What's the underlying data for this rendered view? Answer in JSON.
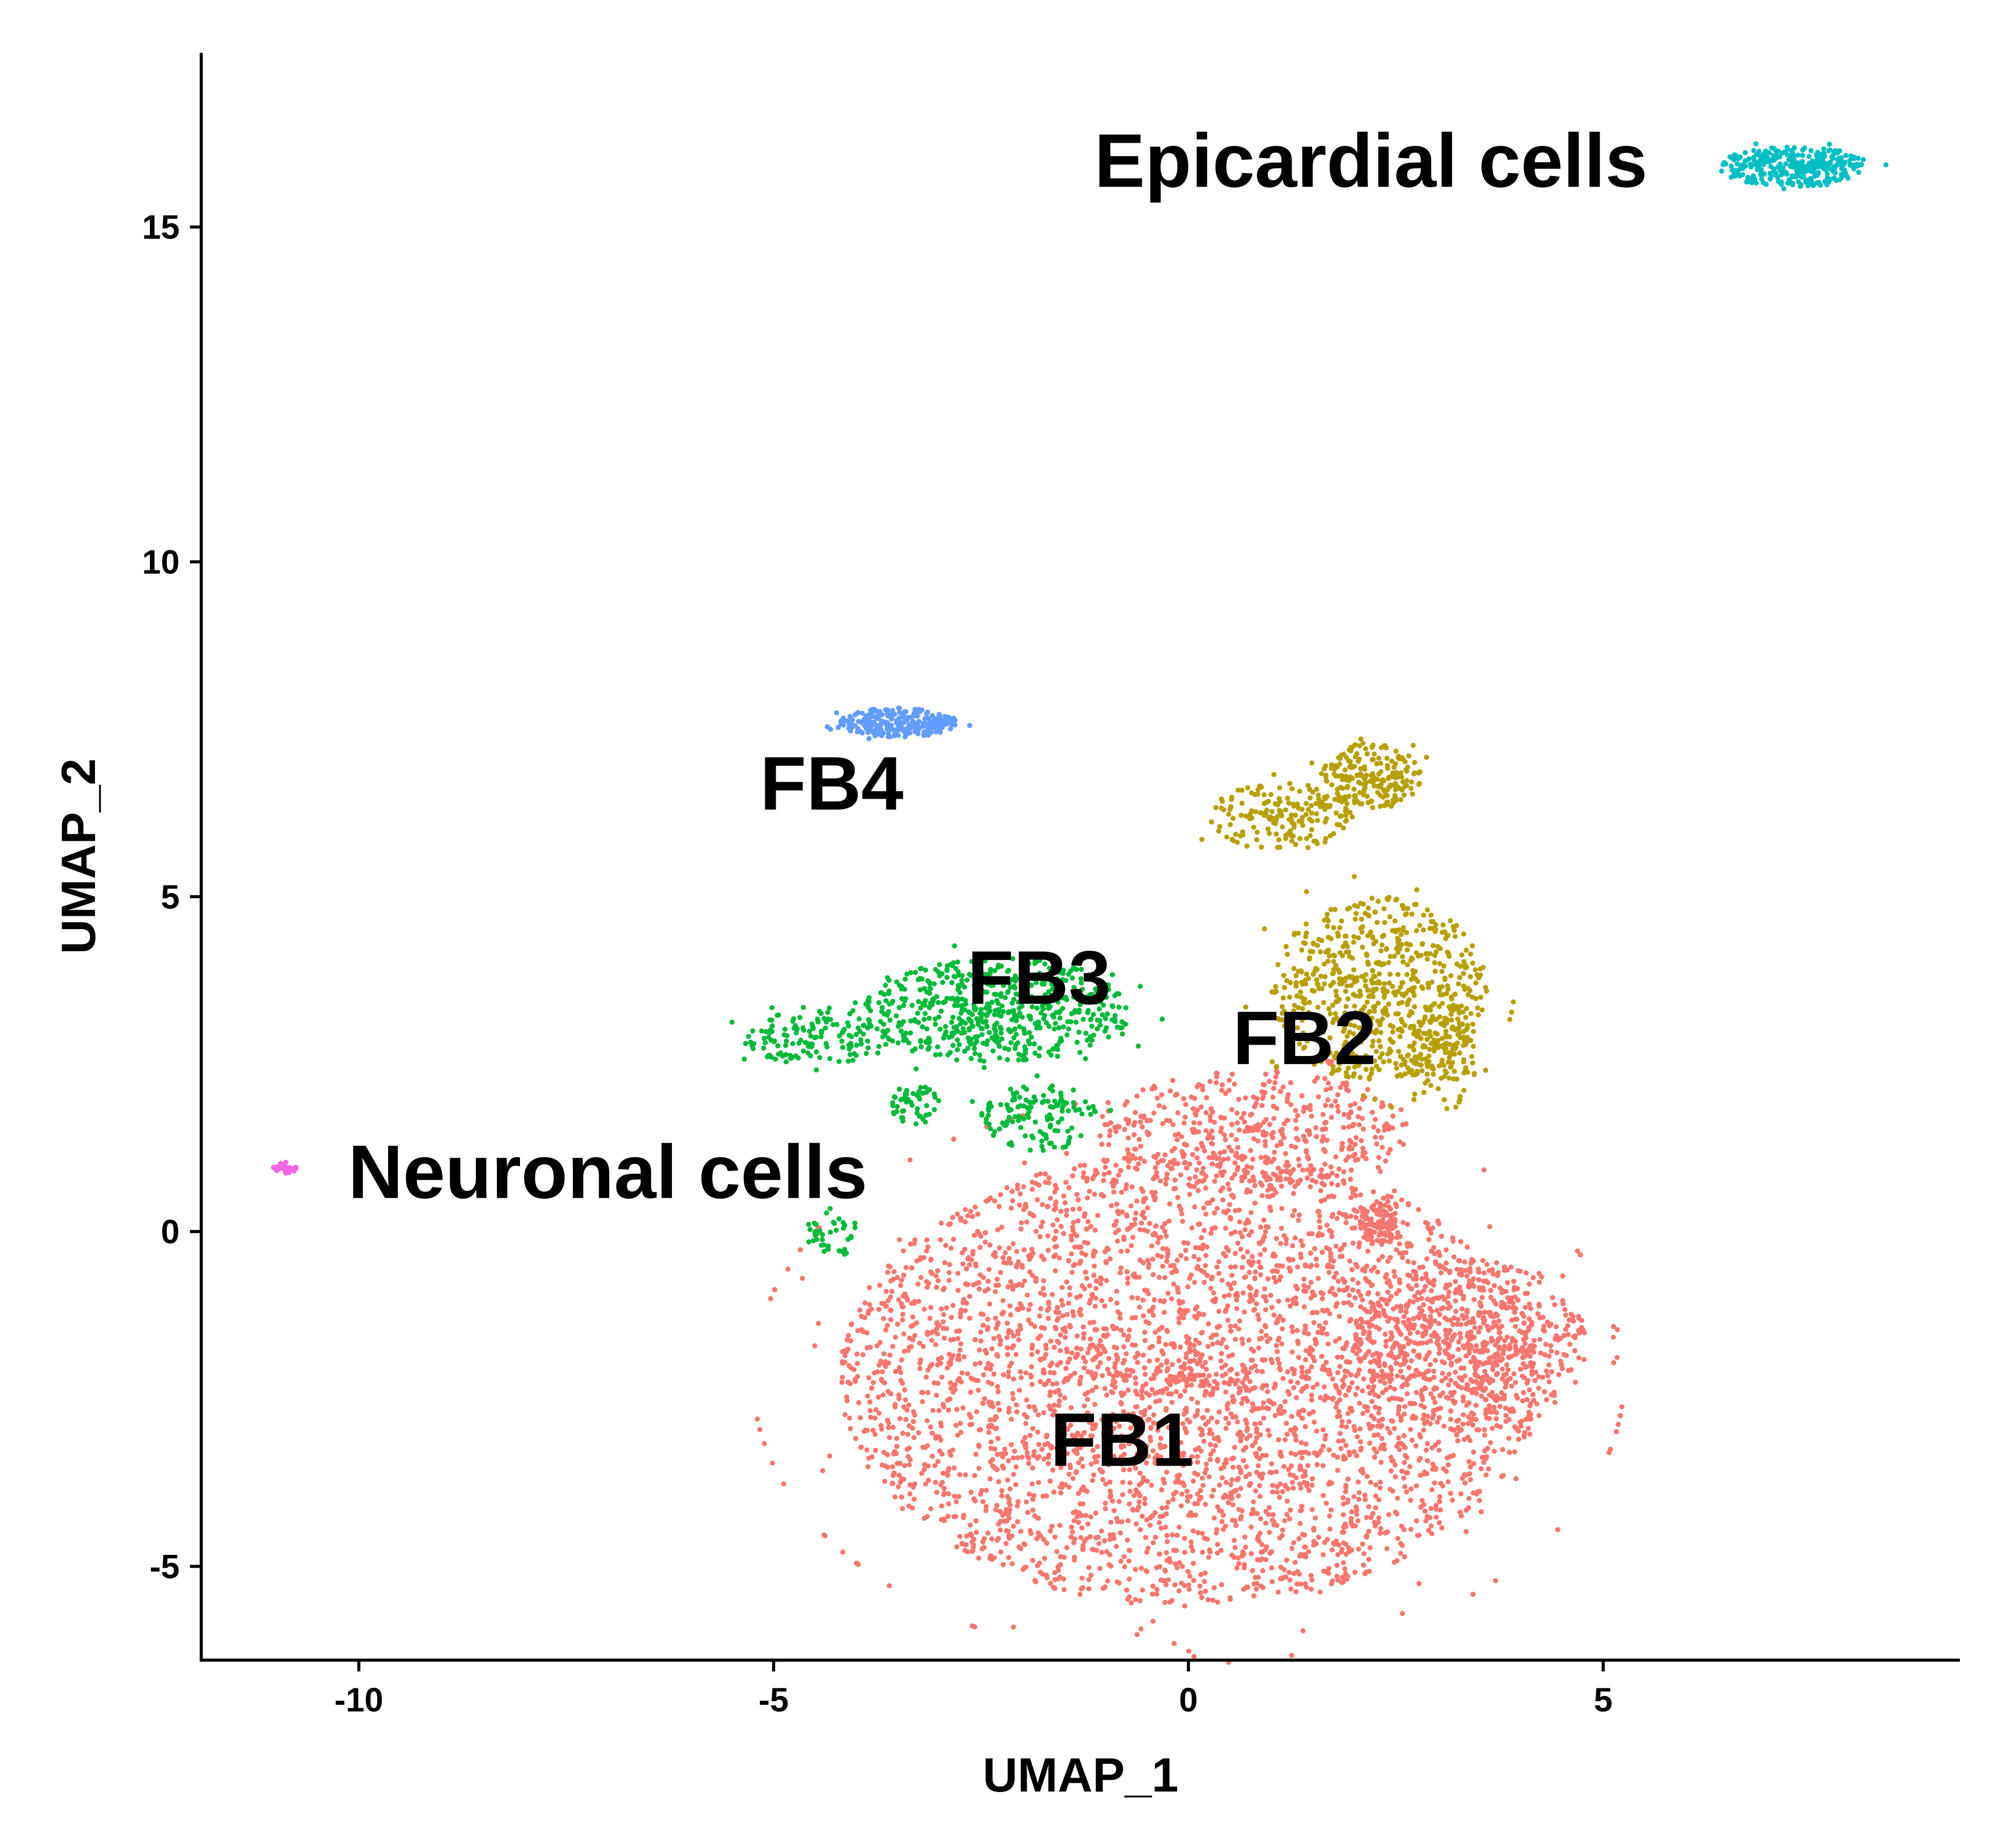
{
  "chart_data": {
    "type": "scatter",
    "title": "",
    "xlabel": "UMAP_1",
    "ylabel": "UMAP_2",
    "xlim": [
      -11.9,
      9.3
    ],
    "ylim": [
      -6.4,
      17.6
    ],
    "xticks": [
      -10,
      -5,
      0,
      5
    ],
    "yticks": [
      -5,
      0,
      5,
      10,
      15
    ],
    "x_tick_labels": [
      "-10",
      "-5",
      "0",
      "5"
    ],
    "y_tick_labels": [
      "-5",
      "0",
      "5",
      "10",
      "15"
    ],
    "grid": false,
    "legend": "none",
    "series": [
      {
        "name": "FB1",
        "color": "#F8766D",
        "label_position": [
          -0.8,
          -3.2
        ],
        "regions": [
          {
            "cx": 0.0,
            "cy": -2.2,
            "rx": 4.2,
            "ry": 3.4,
            "n": 4200
          },
          {
            "cx": 3.4,
            "cy": -1.7,
            "rx": 1.4,
            "ry": 1.3,
            "n": 600
          },
          {
            "cx": 0.8,
            "cy": 1.5,
            "rx": 1.9,
            "ry": 0.9,
            "n": 450
          },
          {
            "cx": 2.3,
            "cy": 0.1,
            "rx": 0.3,
            "ry": 0.3,
            "n": 80
          }
        ]
      },
      {
        "name": "FB2",
        "color": "#B79F00",
        "label_position": [
          1.4,
          2.8
        ],
        "regions": [
          {
            "cx": 2.3,
            "cy": 3.6,
            "rx": 1.3,
            "ry": 1.4,
            "n": 700
          },
          {
            "cx": 2.2,
            "cy": 6.8,
            "rx": 0.6,
            "ry": 0.5,
            "n": 220
          },
          {
            "cx": 1.1,
            "cy": 6.2,
            "rx": 0.9,
            "ry": 0.5,
            "n": 180
          },
          {
            "cx": 3.1,
            "cy": 2.7,
            "rx": 0.4,
            "ry": 0.9,
            "n": 140
          }
        ]
      },
      {
        "name": "FB3",
        "color": "#00BA38",
        "label_position": [
          -1.8,
          3.7
        ],
        "regions": [
          {
            "cx": -2.3,
            "cy": 3.3,
            "rx": 1.6,
            "ry": 0.8,
            "n": 600
          },
          {
            "cx": -4.5,
            "cy": 2.9,
            "rx": 0.9,
            "ry": 0.4,
            "n": 150
          },
          {
            "cx": -1.8,
            "cy": 1.7,
            "rx": 0.7,
            "ry": 0.5,
            "n": 130
          },
          {
            "cx": -3.3,
            "cy": 1.9,
            "rx": 0.3,
            "ry": 0.3,
            "n": 50
          },
          {
            "cx": -4.3,
            "cy": 0.0,
            "rx": 0.3,
            "ry": 0.4,
            "n": 40
          }
        ]
      },
      {
        "name": "FB4",
        "color": "#619CFF",
        "label_position": [
          -4.3,
          6.6
        ],
        "regions": [
          {
            "cx": -3.5,
            "cy": 7.6,
            "rx": 0.7,
            "ry": 0.22,
            "n": 260
          }
        ]
      },
      {
        "name": "Epicardial cells",
        "color": "#00BFC4",
        "label_position": [
          2.2,
          15.9
        ],
        "regions": [
          {
            "cx": 7.3,
            "cy": 15.9,
            "rx": 0.9,
            "ry": 0.3,
            "n": 320
          }
        ]
      },
      {
        "name": "Neuronal cells",
        "color": "#F564E3",
        "label_position": [
          -7.0,
          0.8
        ],
        "regions": [
          {
            "cx": -10.9,
            "cy": 0.95,
            "rx": 0.15,
            "ry": 0.08,
            "n": 30
          }
        ]
      }
    ]
  }
}
